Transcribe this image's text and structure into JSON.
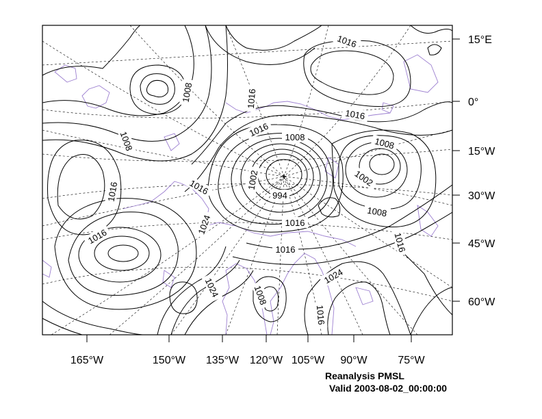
{
  "map": {
    "product": "Reanalysis PMSL",
    "valid": "Valid 2003-08-02_00:00:00",
    "colors": {
      "contour": "#000000",
      "coastline": "#9c7fd0",
      "graticule": "#000000",
      "frame": "#000000",
      "background": "#ffffff"
    },
    "right_axis_labels": [
      "15°E",
      "0°",
      "15°W",
      "30°W",
      "45°W",
      "60°W"
    ],
    "bottom_axis_labels": [
      "165°W",
      "150°W",
      "135°W",
      "120°W",
      "105°W",
      "90°W",
      "75°W"
    ],
    "contour_labels": [
      {
        "text": "1016",
        "rotate": 20
      },
      {
        "text": "1008",
        "rotate": -80
      },
      {
        "text": "1016",
        "rotate": -85
      },
      {
        "text": "1016",
        "rotate": 10
      },
      {
        "text": "1016",
        "rotate": -25
      },
      {
        "text": "1008",
        "rotate": 0
      },
      {
        "text": "1008",
        "rotate": 70
      },
      {
        "text": "1008",
        "rotate": 15
      },
      {
        "text": "1016",
        "rotate": -80
      },
      {
        "text": "1016",
        "rotate": 30
      },
      {
        "text": "1002",
        "rotate": -80
      },
      {
        "text": "994",
        "rotate": 0
      },
      {
        "text": "1002",
        "rotate": 35
      },
      {
        "text": "1008",
        "rotate": 10
      },
      {
        "text": "1024",
        "rotate": -70
      },
      {
        "text": "1016",
        "rotate": 0
      },
      {
        "text": "1016",
        "rotate": -30
      },
      {
        "text": "1016",
        "rotate": 0
      },
      {
        "text": "1016",
        "rotate": 75
      },
      {
        "text": "1024",
        "rotate": -30
      },
      {
        "text": "1024",
        "rotate": 65
      },
      {
        "text": "1008",
        "rotate": 70
      },
      {
        "text": "1016",
        "rotate": 85
      }
    ]
  }
}
